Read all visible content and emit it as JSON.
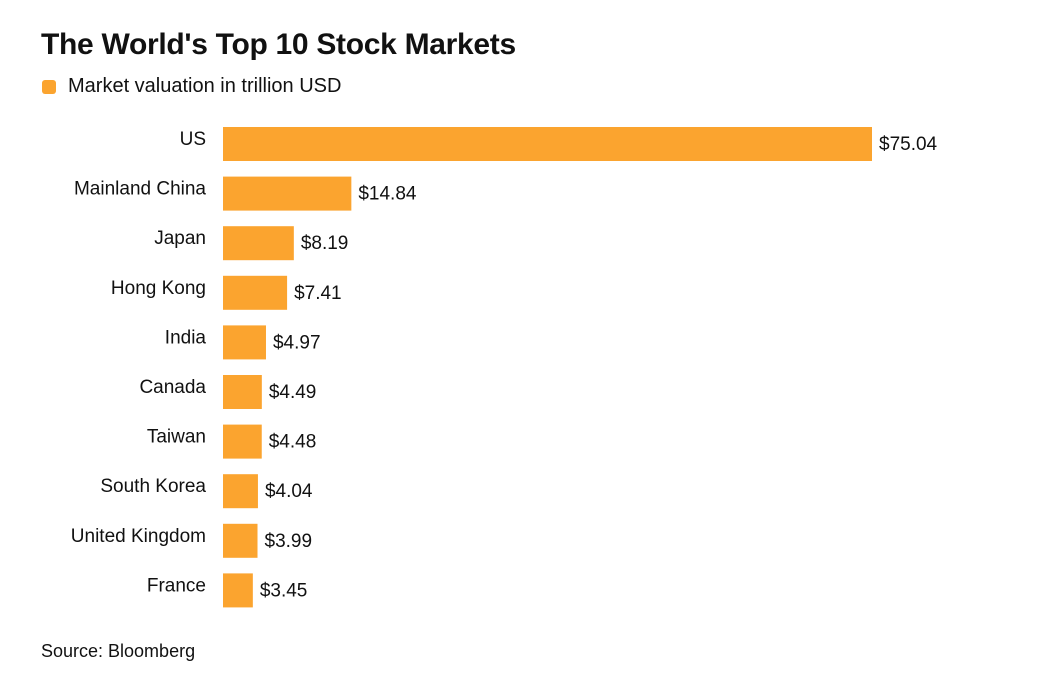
{
  "title": "The World's Top 10 Stock Markets",
  "source": "Source: Bloomberg",
  "colors": {
    "bar": "#FBA42F",
    "text": "#111111",
    "background": "#ffffff"
  },
  "chart_data": {
    "type": "bar",
    "orientation": "horizontal",
    "title": "The World's Top 10 Stock Markets",
    "xlabel": "",
    "ylabel": "",
    "grid": false,
    "legend_position": "top-left",
    "categories": [
      "US",
      "Mainland China",
      "Japan",
      "Hong Kong",
      "India",
      "Canada",
      "Taiwan",
      "South Korea",
      "United Kingdom",
      "France"
    ],
    "series": [
      {
        "name": "Market valuation in trillion USD",
        "values": [
          75.04,
          14.84,
          8.19,
          7.41,
          4.97,
          4.49,
          4.48,
          4.04,
          3.99,
          3.45
        ],
        "labels": [
          "$75.04",
          "$14.84",
          "$8.19",
          "$7.41",
          "$4.97",
          "$4.49",
          "$4.48",
          "$4.04",
          "$3.99",
          "$3.45"
        ]
      }
    ],
    "xlim": [
      0,
      75.04
    ]
  }
}
